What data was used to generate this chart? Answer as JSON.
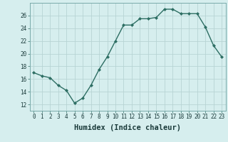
{
  "x": [
    0,
    1,
    2,
    3,
    4,
    5,
    6,
    7,
    8,
    9,
    10,
    11,
    12,
    13,
    14,
    15,
    16,
    17,
    18,
    19,
    20,
    21,
    22,
    23
  ],
  "y": [
    17.0,
    16.5,
    16.2,
    15.0,
    14.2,
    12.2,
    13.0,
    15.0,
    17.5,
    19.5,
    22.0,
    24.5,
    24.5,
    25.5,
    25.5,
    25.7,
    27.0,
    27.0,
    26.3,
    26.3,
    26.3,
    24.2,
    21.3,
    19.5
  ],
  "line_color": "#2d6e63",
  "marker": "D",
  "marker_size": 2.0,
  "bg_color": "#d6eeee",
  "grid_color": "#b8d4d4",
  "xlabel": "Humidex (Indice chaleur)",
  "ylim": [
    11,
    28
  ],
  "yticks": [
    12,
    14,
    16,
    18,
    20,
    22,
    24,
    26
  ],
  "xticks": [
    0,
    1,
    2,
    3,
    4,
    5,
    6,
    7,
    8,
    9,
    10,
    11,
    12,
    13,
    14,
    15,
    16,
    17,
    18,
    19,
    20,
    21,
    22,
    23
  ],
  "tick_fontsize": 5.5,
  "xlabel_fontsize": 7.5,
  "line_width": 1.0
}
